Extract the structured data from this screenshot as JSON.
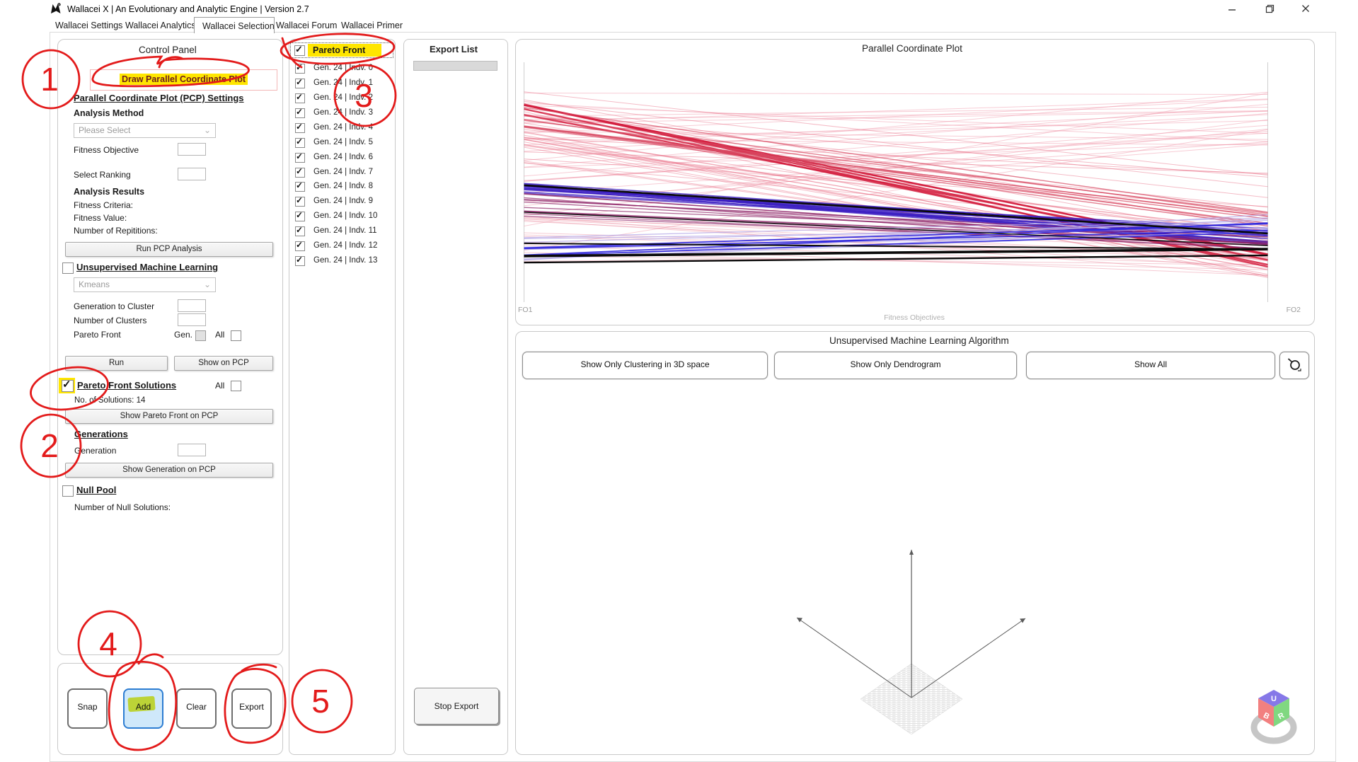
{
  "window": {
    "title": "Wallacei X  |  An Evolutionary and Analytic Engine  |  Version 2.7"
  },
  "tabs": {
    "items": [
      "Wallacei Settings",
      "Wallacei Analytics",
      "Wallacei Selection",
      "Wallacei Forum",
      "Wallacei Primer"
    ],
    "active": "Wallacei Selection"
  },
  "control_panel": {
    "title": "Control Panel",
    "draw_pcp_button": "Draw Parallel Coordinate Plot",
    "pcp_settings_heading": "Parallel Coordinate Plot (PCP) Settings",
    "analysis_method_label": "Analysis Method",
    "analysis_method_value": "Please Select",
    "fitness_objective_label": "Fitness Objective",
    "select_ranking_label": "Select Ranking",
    "analysis_results_heading": "Analysis Results",
    "fitness_criteria_label": "Fitness Criteria:",
    "fitness_value_label": "Fitness Value:",
    "repetitions_label": "Number of Repititions:",
    "run_pcp_analysis_button": "Run PCP Analysis",
    "uml_heading": "Unsupervised Machine Learning",
    "uml_method_value": "Kmeans",
    "generation_to_cluster_label": "Generation to Cluster",
    "number_of_clusters_label": "Number of Clusters",
    "pareto_front_label": "Pareto Front",
    "gen_label": "Gen.",
    "all_label": "All",
    "run_button": "Run",
    "show_on_pcp_button": "Show on PCP",
    "pareto_front_solutions_heading": "Pareto Front Solutions",
    "num_solutions_label": "No. of Solutions: 14",
    "show_pareto_front_button": "Show Pareto Front on PCP",
    "generations_heading": "Generations",
    "generation_label": "Generation",
    "show_generation_button": "Show Generation on PCP",
    "null_pool_heading": "Null Pool",
    "null_solutions_label": "Number of Null Solutions:"
  },
  "snap_panel": {
    "snap": "Snap",
    "add": "Add",
    "clear": "Clear",
    "export": "Export"
  },
  "solution_list": {
    "header": "Pareto Front",
    "items": [
      "Gen. 24 | Indv. 0",
      "Gen. 24 | Indv. 1",
      "Gen. 24 | Indv. 2",
      "Gen. 24 | Indv. 3",
      "Gen. 24 | Indv. 4",
      "Gen. 24 | Indv. 5",
      "Gen. 24 | Indv. 6",
      "Gen. 24 | Indv. 7",
      "Gen. 24 | Indv. 8",
      "Gen. 24 | Indv. 9",
      "Gen. 24 | Indv. 10",
      "Gen. 24 | Indv. 11",
      "Gen. 24 | Indv. 12",
      "Gen. 24 | Indv. 13"
    ]
  },
  "export_panel": {
    "title": "Export List",
    "stop_button": "Stop Export"
  },
  "pcp_panel": {
    "title": "Parallel Coordinate Plot",
    "fo1": "FO1",
    "fo2": "FO2",
    "axis_label": "Fitness Objectives"
  },
  "uml_panel": {
    "title": "Unsupervised Machine Learning Algorithm",
    "clustering_button": "Show Only Clustering in 3D space",
    "dendrogram_button": "Show Only Dendrogram",
    "show_all_button": "Show All",
    "logo_letters": {
      "top": "U",
      "left": "B",
      "right": "R"
    }
  },
  "annotations": {
    "numbers": [
      "1",
      "2",
      "3",
      "4",
      "5"
    ],
    "color": "#e31b1b",
    "highlight_color": "#ffe600"
  },
  "chart_data": {
    "type": "line",
    "subtype": "parallel-coordinates",
    "title": "Parallel Coordinate Plot",
    "axes": [
      "FO1",
      "FO2"
    ],
    "xlabel": "Fitness Objectives",
    "note": "t values are normalized positions along each vertical axis (0=top, 1=bottom)",
    "groups": [
      {
        "name": "pink-upper",
        "color": "#ef8fa3",
        "count": 26,
        "width": 1,
        "opacity": 0.45,
        "t_left": [
          0.12,
          0.8
        ],
        "t_right": [
          0.12,
          0.35
        ]
      },
      {
        "name": "pink-desc",
        "color": "#e86a82",
        "count": 28,
        "width": 1,
        "opacity": 0.45,
        "t_left": [
          0.12,
          0.43
        ],
        "t_right": [
          0.46,
          0.9
        ]
      },
      {
        "name": "pink-low",
        "color": "#e87d92",
        "count": 14,
        "width": 1,
        "opacity": 0.4,
        "t_left": [
          0.61,
          0.84
        ],
        "t_right": [
          0.72,
          0.89
        ]
      },
      {
        "name": "crimson-thick",
        "color": "#d41f3f",
        "count": 6,
        "width": 2.4,
        "opacity": 0.85,
        "t_left": [
          0.17,
          0.22
        ],
        "t_right": [
          0.8,
          0.86
        ]
      },
      {
        "name": "crimson-mid",
        "color": "#d84a63",
        "count": 9,
        "width": 1.4,
        "opacity": 0.7,
        "t_left": [
          0.18,
          0.29
        ],
        "t_right": [
          0.6,
          0.7
        ]
      },
      {
        "name": "purple",
        "color": "#3b1ec2",
        "count": 15,
        "width": 1.5,
        "opacity": 0.8,
        "t_left": [
          0.49,
          0.55
        ],
        "t_right": [
          0.68,
          0.76
        ]
      },
      {
        "name": "magenta",
        "color": "#8e2468",
        "count": 12,
        "width": 1.3,
        "opacity": 0.7,
        "t_left": [
          0.54,
          0.65
        ],
        "t_right": [
          0.71,
          0.78
        ]
      },
      {
        "name": "lavender",
        "color": "#b4a8e8",
        "count": 12,
        "width": 1.3,
        "opacity": 0.75,
        "t_left": [
          0.72,
          0.83
        ],
        "t_right": [
          0.62,
          0.72
        ]
      },
      {
        "name": "blue",
        "color": "#2b23dd",
        "count": 4,
        "width": 1.7,
        "opacity": 0.9,
        "t_left": [
          0.77,
          0.81
        ],
        "t_right": [
          0.67,
          0.71
        ]
      }
    ],
    "black_lines": [
      {
        "t_left": 0.513,
        "t_right": 0.714,
        "width": 2.6
      },
      {
        "t_left": 0.625,
        "t_right": 0.764,
        "width": 1.4
      },
      {
        "t_left": 0.755,
        "t_right": 0.779,
        "width": 2.0
      },
      {
        "t_left": 0.808,
        "t_right": 0.779,
        "width": 3.6
      },
      {
        "t_left": 0.835,
        "t_right": 0.805,
        "width": 2.4
      }
    ]
  }
}
